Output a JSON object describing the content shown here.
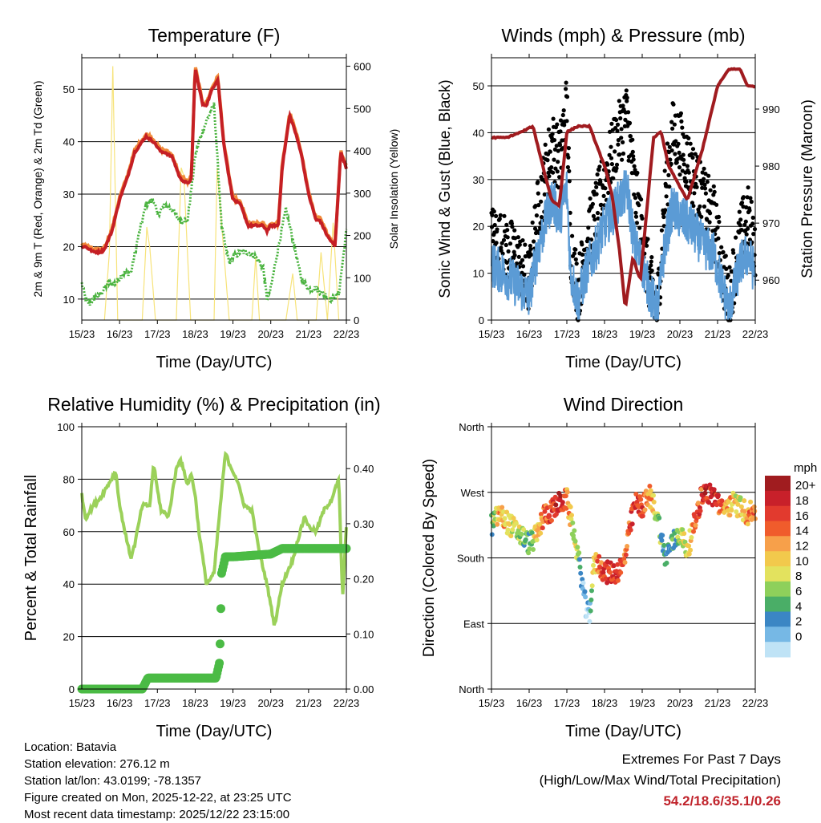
{
  "time_ticks": [
    "15/23",
    "16/23",
    "17/23",
    "18/23",
    "19/23",
    "20/23",
    "21/23",
    "22/23"
  ],
  "info": {
    "location": "Location: Batavia",
    "elevation": "Station elevation: 276.12 m",
    "latlon": "Station lat/lon: 43.0199; -78.1357",
    "created": "Figure created on Mon, 2025-12-22, at 23:25 UTC",
    "recent": "Most recent data timestamp: 2025/12/22 23:15:00"
  },
  "extremes": {
    "title": "Extremes For Past 7 Days",
    "subtitle": "(High/Low/Max Wind/Total Precipitation)",
    "values": "54.2/18.6/35.1/0.26"
  },
  "colors": {
    "temp_2m": "#c51f24",
    "temp_9m": "#f08a3a",
    "dewpoint": "#4ab33f",
    "solar": "#f7e37a",
    "wind": "#5b9bd5",
    "gust": "#000000",
    "pressure": "#a01b1f",
    "rh": "#9bd15a",
    "precip": "#4bbb45"
  },
  "chart_data": [
    {
      "type": "line",
      "title": "Temperature (F)",
      "xlabel": "Time (Day/UTC)",
      "ylabel": "2m & 9m T (Red, Orange) & 2m Td (Green)",
      "y2label": "Solar Insolation (Yellow)",
      "xlim": [
        0,
        7
      ],
      "ylim": [
        6,
        56
      ],
      "y2lim": [
        0,
        620
      ],
      "yticks": [
        10,
        20,
        30,
        40,
        50
      ],
      "y2ticks": [
        0,
        100,
        200,
        300,
        400,
        500,
        600
      ],
      "series": [
        {
          "name": "2m T",
          "x": [
            0,
            0.1,
            0.3,
            0.5,
            0.6,
            0.8,
            1.0,
            1.2,
            1.4,
            1.6,
            1.7,
            1.9,
            2.1,
            2.2,
            2.4,
            2.6,
            2.8,
            2.9,
            3.0,
            3.2,
            3.3,
            3.45,
            3.6,
            3.75,
            3.9,
            4.0,
            4.2,
            4.4,
            4.6,
            4.8,
            4.9,
            5.0,
            5.2,
            5.3,
            5.5,
            5.6,
            5.8,
            6.0,
            6.2,
            6.3,
            6.5,
            6.7,
            6.85,
            7.0
          ],
          "y": [
            20,
            20,
            19,
            19,
            19.5,
            23,
            29,
            33,
            38,
            40,
            41,
            40,
            38,
            38,
            37,
            33,
            32,
            33,
            54,
            47,
            47,
            50,
            52,
            40,
            33,
            29,
            28,
            24,
            24,
            24,
            23,
            24,
            24,
            35,
            45,
            43,
            38,
            30,
            25,
            25,
            22,
            20,
            38,
            35
          ]
        },
        {
          "name": "2m Td",
          "x": [
            0,
            0.1,
            0.2,
            0.3,
            0.5,
            0.7,
            0.9,
            1.1,
            1.3,
            1.5,
            1.7,
            1.9,
            2.0,
            2.2,
            2.4,
            2.5,
            2.6,
            2.8,
            3.0,
            3.1,
            3.3,
            3.5,
            3.7,
            3.8,
            3.9,
            4.0,
            4.2,
            4.4,
            4.6,
            4.8,
            4.9,
            5.0,
            5.2,
            5.4,
            5.6,
            5.8,
            6.0,
            6.2,
            6.4,
            6.6,
            6.8,
            7.0
          ],
          "y": [
            13,
            10,
            9,
            10,
            11,
            13,
            13,
            15,
            15,
            22,
            28,
            29,
            26,
            28,
            27,
            26,
            25,
            25,
            37,
            40,
            44,
            47,
            24,
            20,
            17,
            18,
            19,
            19,
            18,
            16,
            10,
            12,
            20,
            27,
            21,
            14,
            12,
            12,
            11,
            10,
            11,
            23
          ]
        },
        {
          "name": "Solar",
          "x": [
            0.6,
            0.73,
            0.82,
            0.95,
            1.2,
            1.6,
            1.72,
            1.8,
            1.95,
            2.5,
            2.63,
            2.7,
            2.88,
            3.5,
            3.58,
            3.9,
            4.5,
            4.6,
            4.7,
            5.4,
            5.58,
            5.7,
            6.2,
            6.33,
            6.5,
            6.65,
            6.8
          ],
          "y": [
            0,
            160,
            600,
            0,
            0,
            0,
            220,
            170,
            0,
            0,
            360,
            340,
            0,
            0,
            360,
            0,
            0,
            150,
            0,
            0,
            110,
            0,
            0,
            160,
            0,
            230,
            0
          ]
        }
      ]
    },
    {
      "type": "scatter",
      "title": "Winds (mph) & Pressure (mb)",
      "xlabel": "Time (Day/UTC)",
      "ylabel": "Sonic Wind & Gust (Blue, Black)",
      "y2label": "Station Pressure (Maroon)",
      "xlim": [
        0,
        7
      ],
      "ylim": [
        0,
        56
      ],
      "y2lim": [
        953,
        999
      ],
      "yticks": [
        0,
        10,
        20,
        30,
        40,
        50
      ],
      "y2ticks": [
        960,
        970,
        980,
        990
      ],
      "series": [
        {
          "name": "Wind",
          "x": [
            0,
            0.3,
            0.6,
            1.0,
            1.2,
            1.4,
            1.6,
            1.8,
            2.0,
            2.1,
            2.3,
            2.5,
            2.8,
            3.0,
            3.3,
            3.6,
            3.8,
            4.0,
            4.2,
            4.4,
            4.6,
            4.8,
            5.0,
            5.3,
            5.6,
            5.9,
            6.1,
            6.3,
            6.6,
            6.8,
            7.0
          ],
          "y": [
            12,
            10,
            8,
            5,
            14,
            20,
            26,
            22,
            28,
            10,
            4,
            10,
            16,
            20,
            24,
            28,
            16,
            12,
            6,
            2,
            16,
            24,
            22,
            20,
            16,
            14,
            8,
            2,
            12,
            14,
            10
          ]
        },
        {
          "name": "Gust",
          "x": [
            0,
            0.3,
            0.6,
            1.0,
            1.2,
            1.4,
            1.6,
            1.8,
            2.0,
            2.1,
            2.3,
            2.5,
            2.8,
            3.0,
            3.3,
            3.6,
            3.8,
            4.0,
            4.2,
            4.4,
            4.6,
            4.8,
            5.0,
            5.3,
            5.6,
            5.9,
            6.1,
            6.3,
            6.6,
            6.8,
            7.0
          ],
          "y": [
            18,
            16,
            14,
            8,
            22,
            30,
            38,
            34,
            46,
            16,
            6,
            16,
            24,
            30,
            38,
            44,
            28,
            18,
            8,
            2,
            26,
            40,
            38,
            32,
            26,
            22,
            12,
            4,
            18,
            22,
            16
          ]
        },
        {
          "name": "Pressure",
          "x": [
            0,
            0.4,
            0.8,
            1.1,
            1.4,
            1.6,
            1.8,
            2.0,
            2.3,
            2.6,
            3.0,
            3.2,
            3.4,
            3.55,
            3.75,
            3.95,
            4.3,
            4.5,
            4.7,
            4.95,
            5.2,
            5.6,
            6.0,
            6.3,
            6.6,
            6.8,
            7.0
          ],
          "y": [
            985,
            985,
            986,
            987,
            979,
            974,
            973,
            986,
            987,
            987,
            980,
            975,
            965,
            955,
            964,
            960,
            985,
            986,
            980,
            977,
            974,
            983,
            994,
            997,
            997,
            994,
            994
          ]
        }
      ]
    },
    {
      "type": "line",
      "title": "Relative Humidity (%) & Precipitation (in)",
      "xlabel": "Time (Day/UTC)",
      "ylabel": "Percent & Total Rainfall",
      "xlim": [
        0,
        7
      ],
      "ylim": [
        0,
        100
      ],
      "y2lim": [
        0,
        0.476
      ],
      "yticks": [
        0,
        20,
        40,
        60,
        80,
        100
      ],
      "y2ticks": [
        0.0,
        0.1,
        0.2,
        0.3,
        0.4
      ],
      "y2ticklabels": [
        "0.00",
        "0.10",
        "0.20",
        "0.30",
        "0.40"
      ],
      "series": [
        {
          "name": "RH",
          "x": [
            0,
            0.1,
            0.3,
            0.5,
            0.7,
            0.9,
            1.0,
            1.2,
            1.3,
            1.4,
            1.6,
            1.8,
            1.9,
            2.0,
            2.1,
            2.3,
            2.5,
            2.6,
            2.8,
            2.9,
            3.0,
            3.1,
            3.3,
            3.5,
            3.6,
            3.8,
            3.9,
            4.1,
            4.3,
            4.5,
            4.7,
            4.9,
            5.1,
            5.3,
            5.6,
            5.7,
            5.9,
            6.0,
            6.2,
            6.4,
            6.6,
            6.8,
            6.9,
            7.0
          ],
          "y": [
            74,
            65,
            70,
            73,
            78,
            83,
            70,
            56,
            50,
            55,
            70,
            70,
            86,
            76,
            68,
            66,
            84,
            88,
            78,
            82,
            74,
            60,
            40,
            44,
            60,
            90,
            86,
            80,
            70,
            68,
            52,
            40,
            24,
            40,
            50,
            56,
            66,
            62,
            60,
            68,
            72,
            80,
            34,
            62
          ]
        },
        {
          "name": "Precip",
          "x": [
            0,
            1.6,
            1.75,
            3.55,
            3.65,
            3.7,
            3.8,
            4.0,
            5.0,
            5.3,
            5.6,
            6.0,
            7.0
          ],
          "y": [
            0,
            0,
            0.02,
            0.02,
            0.05,
            0.21,
            0.24,
            0.24,
            0.245,
            0.255,
            0.255,
            0.255,
            0.255
          ]
        }
      ]
    },
    {
      "type": "scatter",
      "title": "Wind Direction",
      "xlabel": "Time (Day/UTC)",
      "ylabel": "Direction (Colored By Speed)",
      "xlim": [
        0,
        7
      ],
      "ylim": [
        0,
        360
      ],
      "yticklabels": [
        "North",
        "East",
        "South",
        "West",
        "North"
      ],
      "colorbar": {
        "label": "mph",
        "ticks": [
          "20+",
          "18",
          "16",
          "14",
          "12",
          "10",
          "8",
          "6",
          "4",
          "2",
          "0"
        ],
        "colors": [
          "#a01c1f",
          "#c8202a",
          "#e23a2e",
          "#f05c2c",
          "#f7a04a",
          "#f2c94c",
          "#e3e25e",
          "#8ed05b",
          "#4aae67",
          "#3b86c4",
          "#76b8e5",
          "#bfe3f6"
        ]
      },
      "series": [
        {
          "name": "Direction",
          "x": [
            0,
            0.2,
            0.4,
            0.6,
            0.8,
            1.0,
            1.2,
            1.4,
            1.6,
            1.8,
            2.0,
            2.1,
            2.2,
            2.3,
            2.4,
            2.5,
            2.6,
            2.7,
            2.8,
            3.0,
            3.3,
            3.5,
            3.8,
            4.0,
            4.2,
            4.4,
            4.6,
            4.8,
            5.0,
            5.2,
            5.6,
            5.9,
            6.0,
            6.1,
            6.4,
            6.6,
            6.8,
            7.0
          ],
          "y": [
            225,
            240,
            230,
            220,
            210,
            200,
            210,
            240,
            245,
            255,
            260,
            235,
            210,
            180,
            150,
            110,
            100,
            165,
            175,
            160,
            160,
            170,
            255,
            250,
            265,
            240,
            180,
            200,
            215,
            190,
            270,
            265,
            260,
            245,
            255,
            250,
            240,
            245
          ],
          "speed": [
            6,
            14,
            12,
            10,
            8,
            6,
            12,
            16,
            18,
            20,
            14,
            12,
            10,
            6,
            4,
            2,
            2,
            10,
            14,
            18,
            18,
            16,
            18,
            18,
            14,
            8,
            4,
            6,
            8,
            12,
            18,
            20,
            18,
            16,
            12,
            10,
            14,
            16
          ]
        }
      ]
    }
  ]
}
